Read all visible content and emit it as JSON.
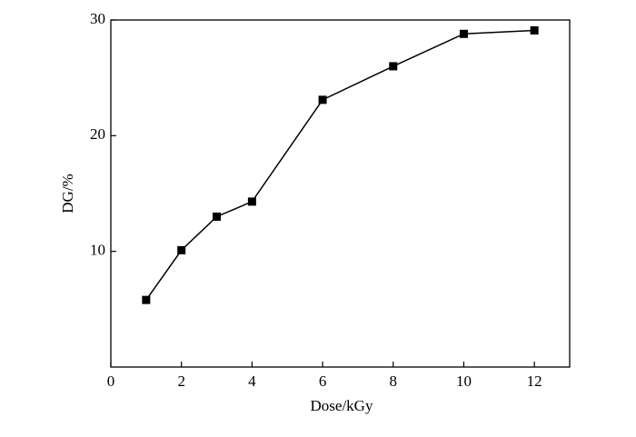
{
  "chart_data": {
    "type": "line",
    "x_label": "Dose/kGy",
    "y_label": "DG/%",
    "x": [
      1,
      2,
      3,
      4,
      6,
      8,
      10,
      12
    ],
    "series": [
      {
        "color": "#000000",
        "values": [
          5.8,
          10.1,
          13.0,
          14.3,
          23.1,
          26.0,
          28.8,
          29.1
        ]
      }
    ],
    "xlim": [
      0,
      13
    ],
    "xticks": [
      0,
      2,
      4,
      6,
      8,
      10,
      12
    ],
    "ylim": [
      0,
      30
    ],
    "yticks": [
      10,
      20,
      30
    ],
    "marker": "square"
  }
}
